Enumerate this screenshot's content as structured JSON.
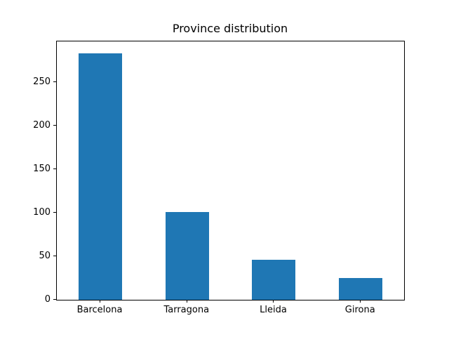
{
  "chart_data": {
    "type": "bar",
    "title": "Province distribution",
    "categories": [
      "Barcelona",
      "Tarragona",
      "Lleida",
      "Girona"
    ],
    "values": [
      283,
      101,
      46,
      25
    ],
    "xlabel": "",
    "ylabel": "",
    "ylim": [
      0,
      297
    ],
    "yticks": [
      0,
      50,
      100,
      150,
      200,
      250
    ],
    "bar_color": "#1f77b4",
    "bar_width_fraction": 0.5,
    "grid": false,
    "legend": false
  },
  "figure": {
    "background": "#ffffff",
    "spine_color": "#000000",
    "text_color": "#000000"
  }
}
